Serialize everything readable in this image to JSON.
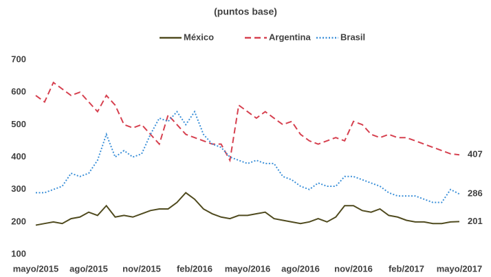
{
  "chart_data": {
    "type": "line",
    "title": "(puntos base)",
    "categories": [
      "mayo/2015",
      null,
      null,
      null,
      null,
      null,
      "ago/2015",
      null,
      null,
      null,
      null,
      null,
      "nov/2015",
      null,
      null,
      null,
      null,
      null,
      "feb/2016",
      null,
      null,
      null,
      null,
      null,
      "mayo/2016",
      null,
      null,
      null,
      null,
      null,
      "ago/2016",
      null,
      null,
      null,
      null,
      null,
      "nov/2016",
      null,
      null,
      null,
      null,
      null,
      "feb/2017",
      null,
      null,
      null,
      null,
      null,
      "mayo/2017"
    ],
    "series": [
      {
        "name": "México",
        "color": "#4f4a1e",
        "dash": "solid",
        "values": [
          190,
          195,
          200,
          195,
          210,
          215,
          230,
          220,
          250,
          215,
          220,
          215,
          225,
          235,
          240,
          240,
          260,
          290,
          270,
          240,
          225,
          215,
          210,
          220,
          220,
          225,
          230,
          210,
          205,
          200,
          195,
          200,
          210,
          200,
          215,
          250,
          250,
          235,
          230,
          240,
          220,
          215,
          205,
          200,
          200,
          195,
          195,
          200,
          201
        ],
        "value_labels": [
          null,
          null,
          null,
          null,
          null,
          null,
          null,
          null,
          null,
          null,
          null,
          null,
          null,
          null,
          null,
          null,
          null,
          null,
          null,
          null,
          null,
          null,
          null,
          null,
          null,
          null,
          null,
          null,
          null,
          null,
          null,
          null,
          null,
          null,
          null,
          null,
          null,
          null,
          null,
          null,
          null,
          null,
          null,
          null,
          null,
          null,
          null,
          null,
          "201"
        ]
      },
      {
        "name": "Argentina",
        "color": "#d6404f",
        "dash": "dashed",
        "values": [
          590,
          570,
          630,
          610,
          590,
          600,
          570,
          540,
          590,
          560,
          500,
          490,
          500,
          470,
          440,
          530,
          500,
          470,
          460,
          450,
          440,
          440,
          390,
          560,
          540,
          520,
          540,
          520,
          500,
          510,
          470,
          450,
          440,
          450,
          460,
          450,
          510,
          500,
          470,
          460,
          470,
          460,
          460,
          450,
          440,
          430,
          420,
          410,
          407
        ],
        "value_labels": [
          null,
          null,
          null,
          null,
          null,
          null,
          null,
          null,
          null,
          null,
          null,
          null,
          null,
          null,
          null,
          null,
          null,
          null,
          null,
          null,
          null,
          null,
          null,
          null,
          null,
          null,
          null,
          null,
          null,
          null,
          null,
          null,
          null,
          null,
          null,
          null,
          null,
          null,
          null,
          null,
          null,
          null,
          null,
          null,
          null,
          null,
          null,
          null,
          "407"
        ]
      },
      {
        "name": "Brasil",
        "color": "#3a8fd8",
        "dash": "dotted",
        "values": [
          290,
          290,
          300,
          310,
          350,
          340,
          350,
          390,
          470,
          400,
          420,
          400,
          410,
          470,
          520,
          510,
          540,
          500,
          540,
          470,
          440,
          430,
          400,
          390,
          380,
          390,
          380,
          380,
          340,
          330,
          310,
          300,
          320,
          310,
          310,
          340,
          340,
          330,
          320,
          310,
          290,
          280,
          280,
          280,
          270,
          260,
          260,
          300,
          286
        ],
        "value_labels": [
          null,
          null,
          null,
          null,
          null,
          null,
          null,
          null,
          null,
          null,
          null,
          null,
          null,
          null,
          null,
          null,
          null,
          null,
          null,
          null,
          null,
          null,
          null,
          null,
          null,
          null,
          null,
          null,
          null,
          null,
          null,
          null,
          null,
          null,
          null,
          null,
          null,
          null,
          null,
          null,
          null,
          null,
          null,
          null,
          null,
          null,
          null,
          null,
          "286"
        ]
      }
    ],
    "ylim": [
      100,
      700
    ],
    "yticks": [
      100,
      200,
      300,
      400,
      500,
      600,
      700
    ],
    "legend": "top"
  }
}
